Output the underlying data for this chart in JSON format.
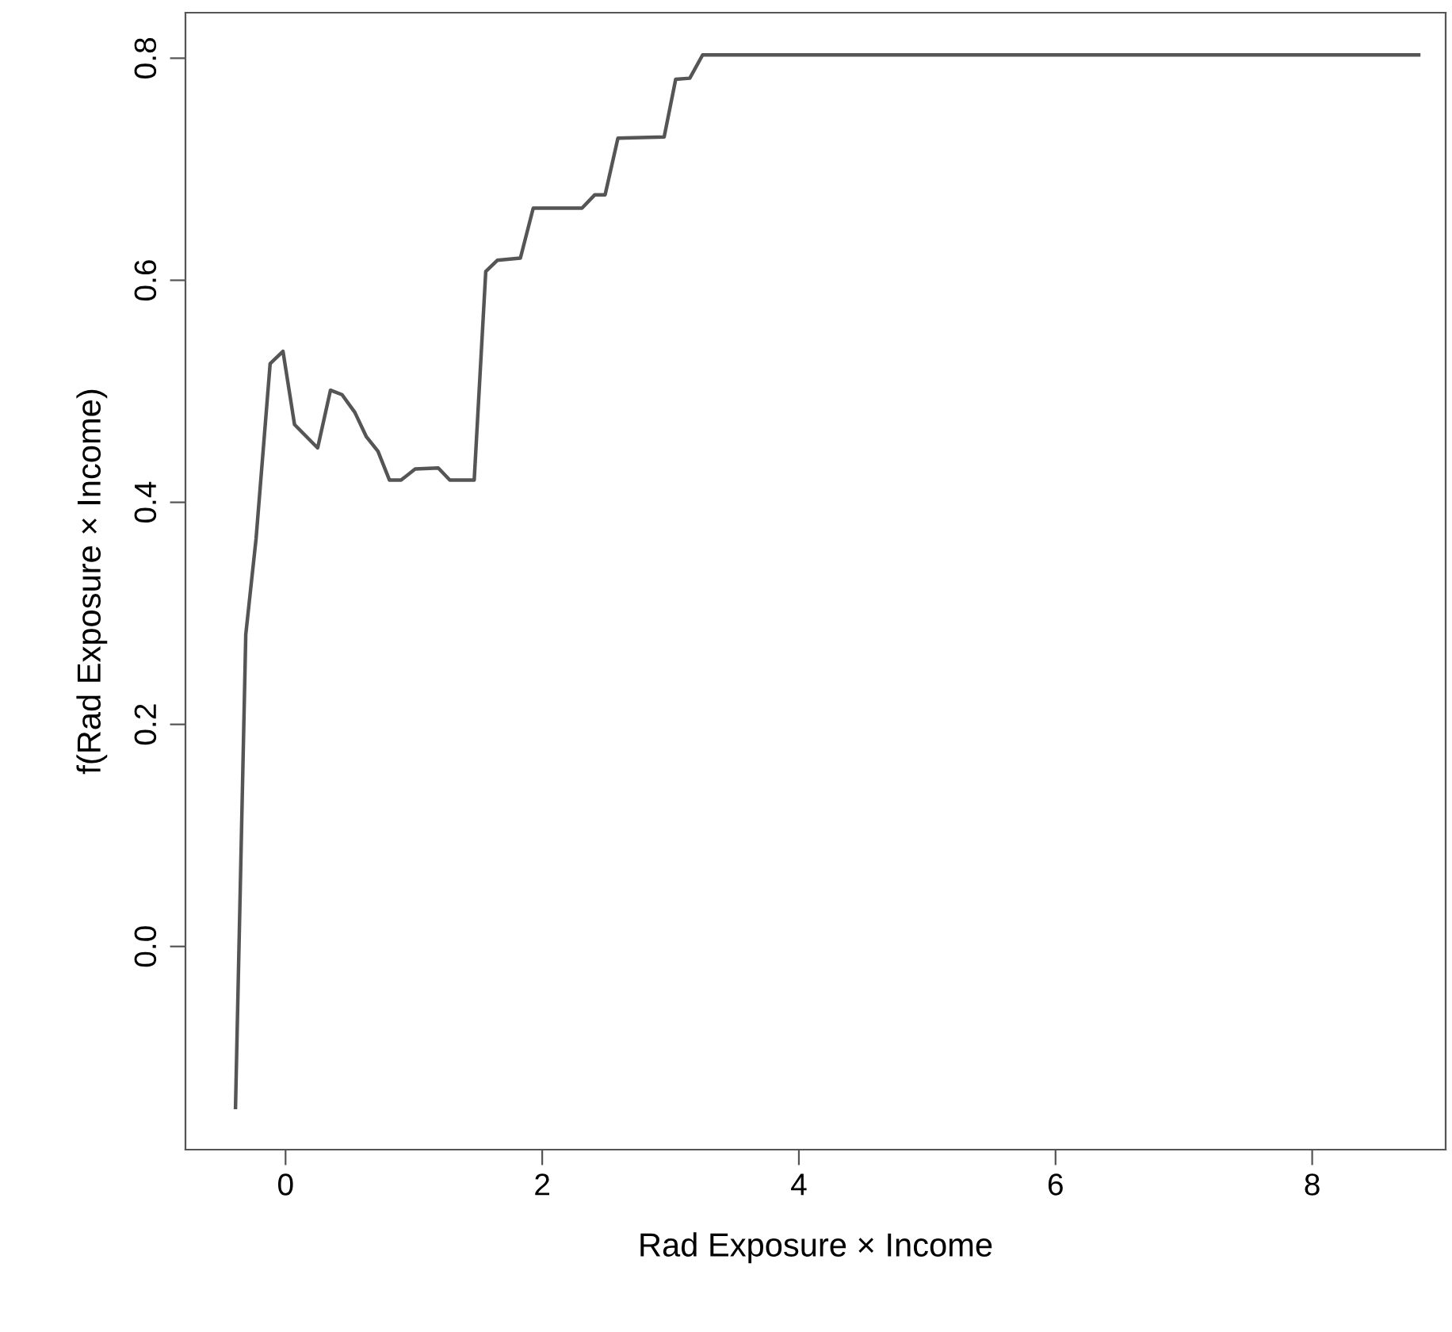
{
  "chart_data": {
    "type": "line",
    "xlabel": "Rad Exposure × Income",
    "ylabel": "f(Rad Exposure × Income)",
    "series": [
      {
        "color": "#555555",
        "x": [
          -0.39,
          -0.31,
          -0.23,
          -0.12,
          -0.02,
          0.07,
          0.25,
          0.35,
          0.44,
          0.54,
          0.63,
          0.72,
          0.81,
          0.9,
          1.01,
          1.19,
          1.28,
          1.47,
          1.56,
          1.65,
          1.83,
          1.93,
          2.31,
          2.41,
          2.49,
          2.59,
          2.95,
          3.04,
          3.15,
          3.25,
          8.83
        ],
        "values": [
          -0.145,
          0.281,
          0.367,
          0.525,
          0.536,
          0.47,
          0.449,
          0.501,
          0.497,
          0.481,
          0.459,
          0.446,
          0.42,
          0.42,
          0.43,
          0.431,
          0.42,
          0.42,
          0.608,
          0.618,
          0.62,
          0.665,
          0.665,
          0.677,
          0.677,
          0.728,
          0.729,
          0.781,
          0.782,
          0.803,
          0.803
        ]
      }
    ],
    "xlim": [
      -0.78,
      9.04
    ],
    "ylim": [
      -0.183,
      0.841
    ],
    "xticks": [
      0,
      2,
      4,
      6,
      8
    ],
    "yticks": [
      {
        "value": 0,
        "label": "0.0"
      },
      {
        "value": 0.2,
        "label": "0.2"
      },
      {
        "value": 0.4,
        "label": "0.4"
      },
      {
        "value": 0.6,
        "label": "0.6"
      },
      {
        "value": 0.8,
        "label": "0.8"
      }
    ],
    "grid": false,
    "legend": false,
    "marker": "none",
    "line_style": "solid"
  }
}
